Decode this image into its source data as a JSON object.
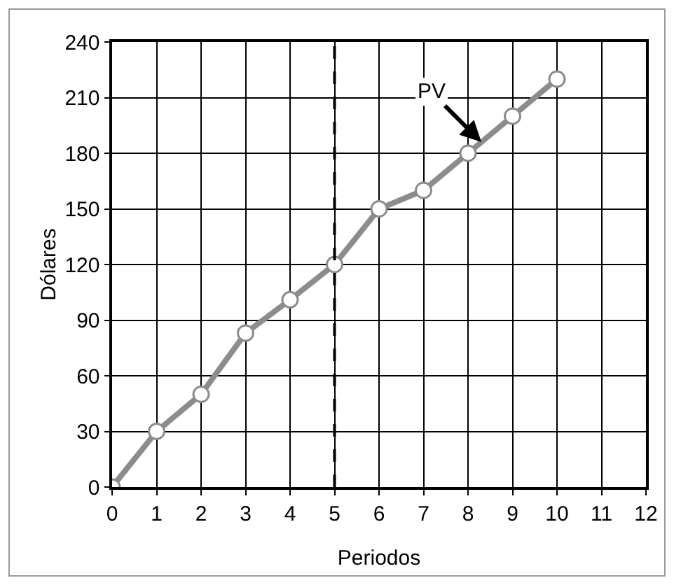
{
  "chart_data": {
    "type": "line",
    "xlabel": "Periodos",
    "ylabel": "Dólares",
    "x": [
      0,
      1,
      2,
      3,
      4,
      5,
      6,
      7,
      8,
      9,
      10
    ],
    "series": [
      {
        "color": "#8c8c8c",
        "values": [
          0,
          30,
          50,
          83,
          101,
          120,
          150,
          160,
          180,
          200,
          220
        ]
      }
    ],
    "xlim": [
      0,
      12
    ],
    "xticks": [
      0,
      1,
      2,
      3,
      4,
      5,
      6,
      7,
      8,
      9,
      10,
      11,
      12
    ],
    "ylim": [
      0,
      240
    ],
    "yticks": [
      0,
      30,
      60,
      90,
      120,
      150,
      180,
      210,
      240
    ],
    "grid": true,
    "marker": "circle",
    "line_style": "solid",
    "ref_lines": [
      {
        "axis": "x",
        "value": 5,
        "color": "#000000",
        "line_style": "dashed"
      }
    ],
    "annotations": [
      {
        "text": "PV",
        "x": 8.3,
        "y": 186
      }
    ]
  }
}
